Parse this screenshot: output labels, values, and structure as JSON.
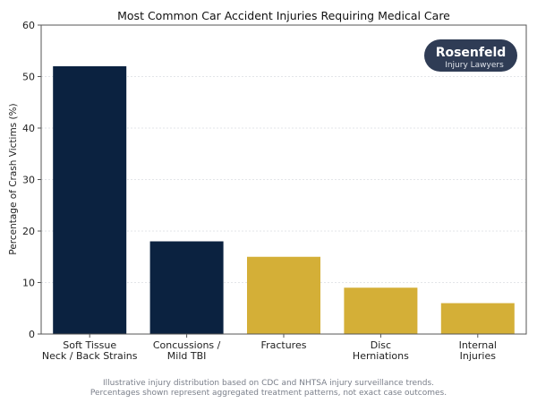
{
  "chart_data": {
    "type": "bar",
    "title": "Most Common Car Accident Injuries Requiring Medical Care",
    "xlabel": "",
    "ylabel": "Percentage of Crash Victims (%)",
    "ylim": [
      0,
      60
    ],
    "yticks": [
      0,
      10,
      20,
      30,
      40,
      50,
      60
    ],
    "grid": "horizontal dashed",
    "categories": [
      [
        "Soft Tissue",
        "Neck / Back Strains"
      ],
      [
        "Concussions /",
        "Mild TBI"
      ],
      [
        "Fractures"
      ],
      [
        "Disc",
        "Herniations"
      ],
      [
        "Internal",
        "Injuries"
      ]
    ],
    "values": [
      52,
      18,
      15,
      9,
      6
    ],
    "bar_colors": [
      "#0b2240",
      "#0b2240",
      "#d4af37",
      "#d4af37",
      "#d4af37"
    ]
  },
  "logo": {
    "name": "Rosenfeld",
    "tagline": "Injury Lawyers",
    "bg": "#2f3c55"
  },
  "footnote": [
    "Illustrative injury distribution based on CDC and NHTSA injury surveillance trends.",
    "Percentages shown represent aggregated treatment patterns, not exact case outcomes."
  ]
}
